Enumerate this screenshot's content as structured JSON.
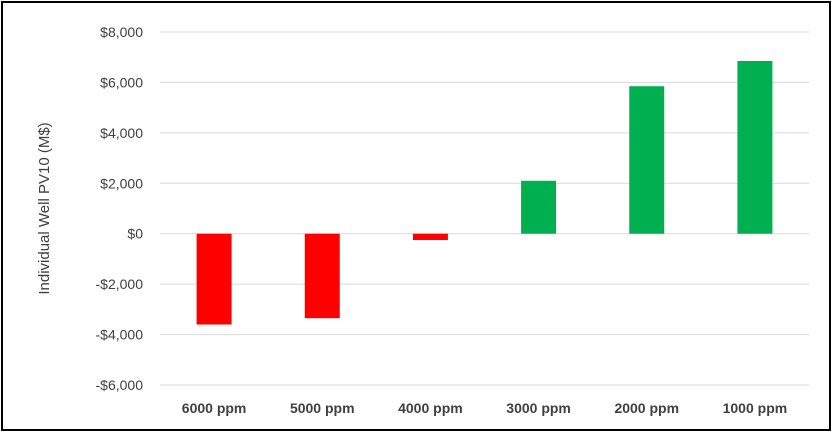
{
  "chart_data": {
    "type": "bar",
    "title": "",
    "xlabel": "",
    "ylabel": "Individual Well PV10 (M$)",
    "categories": [
      "6000 ppm",
      "5000 ppm",
      "4000 ppm",
      "3000 ppm",
      "2000 ppm",
      "1000 ppm"
    ],
    "values": [
      -3600,
      -3350,
      -250,
      2100,
      5850,
      6850
    ],
    "bar_colors": [
      "#ff0000",
      "#ff0000",
      "#ff0000",
      "#00b050",
      "#00b050",
      "#00b050"
    ],
    "ylim": [
      -6000,
      8000
    ],
    "yticks": [
      8000,
      6000,
      4000,
      2000,
      0,
      -2000,
      -4000,
      -6000
    ],
    "ytick_labels": [
      "$8,000",
      "$6,000",
      "$4,000",
      "$2,000",
      "$0",
      "-$2,000",
      "-$4,000",
      "-$6,000"
    ],
    "grid": true,
    "gridline_color": "#d9d9d9",
    "legend": "none"
  }
}
